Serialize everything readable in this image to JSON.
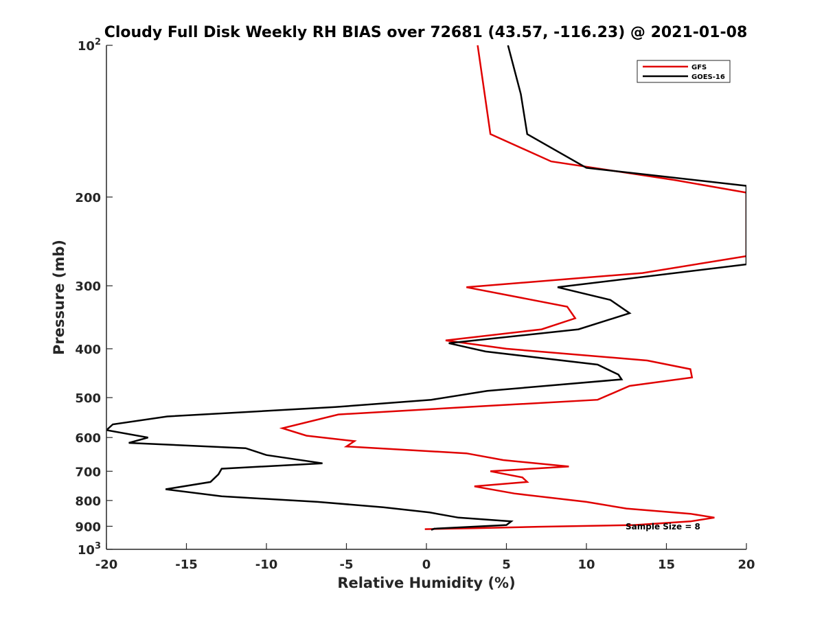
{
  "chart_data": {
    "type": "line",
    "title": "Cloudy Full Disk Weekly RH BIAS over 72681 (43.57, -116.23) @ 2021-01-08",
    "xlabel": "Relative Humidity (%)",
    "ylabel": "Pressure (mb)",
    "xlim": [
      -20,
      20
    ],
    "ylim": [
      100,
      1000
    ],
    "y_scale": "log",
    "y_reversed": true,
    "grid": false,
    "x_ticks": [
      "-20",
      "-15",
      "-10",
      "-5",
      "0",
      "5",
      "10",
      "15",
      "20"
    ],
    "y_ticks": [
      {
        "value": 100,
        "base": "10",
        "exp": "2"
      },
      {
        "value": 200,
        "label": "200"
      },
      {
        "value": 300,
        "label": "300"
      },
      {
        "value": 400,
        "label": "400"
      },
      {
        "value": 500,
        "label": "500"
      },
      {
        "value": 600,
        "label": "600"
      },
      {
        "value": 700,
        "label": "700"
      },
      {
        "value": 800,
        "label": "800"
      },
      {
        "value": 900,
        "label": "900"
      },
      {
        "value": 1000,
        "base": "10",
        "exp": "3"
      }
    ],
    "legend_position": "top-right",
    "series": [
      {
        "name": "GFS",
        "color": "#e00000",
        "points": [
          [
            3.2,
            100
          ],
          [
            4.0,
            150
          ],
          [
            7.8,
            170
          ],
          [
            15.5,
            185
          ],
          [
            20.0,
            196
          ],
          [
            20.0,
            262
          ],
          [
            13.5,
            283
          ],
          [
            2.5,
            302
          ],
          [
            8.8,
            330
          ],
          [
            9.3,
            348
          ],
          [
            7.2,
            366
          ],
          [
            1.2,
            385
          ],
          [
            5.0,
            400
          ],
          [
            13.8,
            422
          ],
          [
            16.5,
            439
          ],
          [
            16.6,
            456
          ],
          [
            12.7,
            474
          ],
          [
            10.7,
            505
          ],
          [
            3.5,
            520
          ],
          [
            -5.5,
            540
          ],
          [
            -9.0,
            575
          ],
          [
            -7.5,
            595
          ],
          [
            -4.5,
            610
          ],
          [
            -5.0,
            625
          ],
          [
            2.5,
            645
          ],
          [
            4.8,
            665
          ],
          [
            8.9,
            685
          ],
          [
            4.0,
            700
          ],
          [
            6.0,
            720
          ],
          [
            6.3,
            735
          ],
          [
            3.0,
            750
          ],
          [
            5.5,
            775
          ],
          [
            10.0,
            805
          ],
          [
            12.5,
            830
          ],
          [
            16.5,
            850
          ],
          [
            18.0,
            865
          ],
          [
            16.5,
            880
          ],
          [
            13.0,
            895
          ],
          [
            7.0,
            902
          ],
          [
            3.0,
            908
          ],
          [
            -0.1,
            912
          ]
        ]
      },
      {
        "name": "GOES-16",
        "color": "#000000",
        "points": [
          [
            5.1,
            100
          ],
          [
            5.9,
            125
          ],
          [
            6.3,
            150
          ],
          [
            10.0,
            175
          ],
          [
            20.0,
            190
          ],
          [
            20.0,
            272
          ],
          [
            8.2,
            302
          ],
          [
            11.5,
            320
          ],
          [
            12.7,
            340
          ],
          [
            9.5,
            366
          ],
          [
            1.4,
            390
          ],
          [
            3.7,
            405
          ],
          [
            10.7,
            430
          ],
          [
            12.0,
            450
          ],
          [
            12.2,
            460
          ],
          [
            3.8,
            485
          ],
          [
            0.3,
            505
          ],
          [
            -5.7,
            522
          ],
          [
            -16.2,
            545
          ],
          [
            -19.6,
            565
          ],
          [
            -20.0,
            580
          ],
          [
            -17.4,
            600
          ],
          [
            -18.6,
            615
          ],
          [
            -11.3,
            630
          ],
          [
            -10.0,
            650
          ],
          [
            -6.5,
            675
          ],
          [
            -12.8,
            692
          ],
          [
            -13.0,
            710
          ],
          [
            -13.5,
            735
          ],
          [
            -16.3,
            760
          ],
          [
            -12.8,
            785
          ],
          [
            -6.8,
            805
          ],
          [
            -2.7,
            825
          ],
          [
            0.2,
            845
          ],
          [
            2.0,
            865
          ],
          [
            5.3,
            880
          ],
          [
            5.0,
            895
          ],
          [
            0.5,
            910
          ],
          [
            0.3,
            915
          ]
        ]
      }
    ],
    "annotations": [
      "Sample Size = 8"
    ]
  }
}
